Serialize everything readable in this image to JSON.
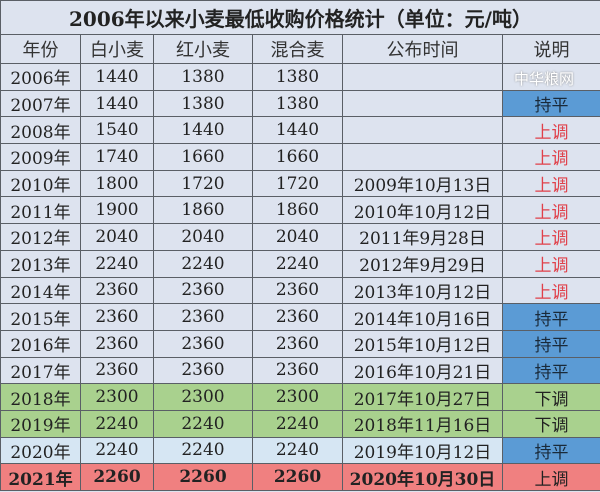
{
  "title": "2006年以来小麦最低收购价格统计（单位：元/吨）",
  "headers": [
    "年份",
    "白小麦",
    "红小麦",
    "混合麦",
    "公布时间",
    "说明"
  ],
  "rows": [
    [
      "2006年",
      "1440",
      "1380",
      "1380",
      "",
      ""
    ],
    [
      "2007年",
      "1440",
      "1380",
      "1380",
      "",
      "持平"
    ],
    [
      "2008年",
      "1540",
      "1440",
      "1440",
      "",
      "上调"
    ],
    [
      "2009年",
      "1740",
      "1660",
      "1660",
      "",
      "上调"
    ],
    [
      "2010年",
      "1800",
      "1720",
      "1720",
      "2009年10月13日",
      "上调"
    ],
    [
      "2011年",
      "1900",
      "1860",
      "1860",
      "2010年10月12日",
      "上调"
    ],
    [
      "2012年",
      "2040",
      "2040",
      "2040",
      "2011年9月28日",
      "上调"
    ],
    [
      "2013年",
      "2240",
      "2240",
      "2240",
      "2012年9月29日",
      "上调"
    ],
    [
      "2014年",
      "2360",
      "2360",
      "2360",
      "2013年10月12日",
      "上调"
    ],
    [
      "2015年",
      "2360",
      "2360",
      "2360",
      "2014年10月16日",
      "持平"
    ],
    [
      "2016年",
      "2360",
      "2360",
      "2360",
      "2015年10月12日",
      "持平"
    ],
    [
      "2017年",
      "2360",
      "2360",
      "2360",
      "2016年10月21日",
      "持平"
    ],
    [
      "2018年",
      "2300",
      "2300",
      "2300",
      "2017年10月27日",
      "下调"
    ],
    [
      "2019年",
      "2240",
      "2240",
      "2240",
      "2018年11月16日",
      "下调"
    ],
    [
      "2020年",
      "2240",
      "2240",
      "2240",
      "2019年10月12日",
      "持平"
    ],
    [
      "2021年",
      "2260",
      "2260",
      "2260",
      "2020年10月30日",
      "上调"
    ]
  ],
  "watermark": "中华粮网",
  "colors": {
    "flat": "#5b9bd5",
    "up_text": "#e0404a",
    "down_row": "#a9d18e",
    "row_2021": "#f08080",
    "row_2020": "#d6e6f3"
  }
}
